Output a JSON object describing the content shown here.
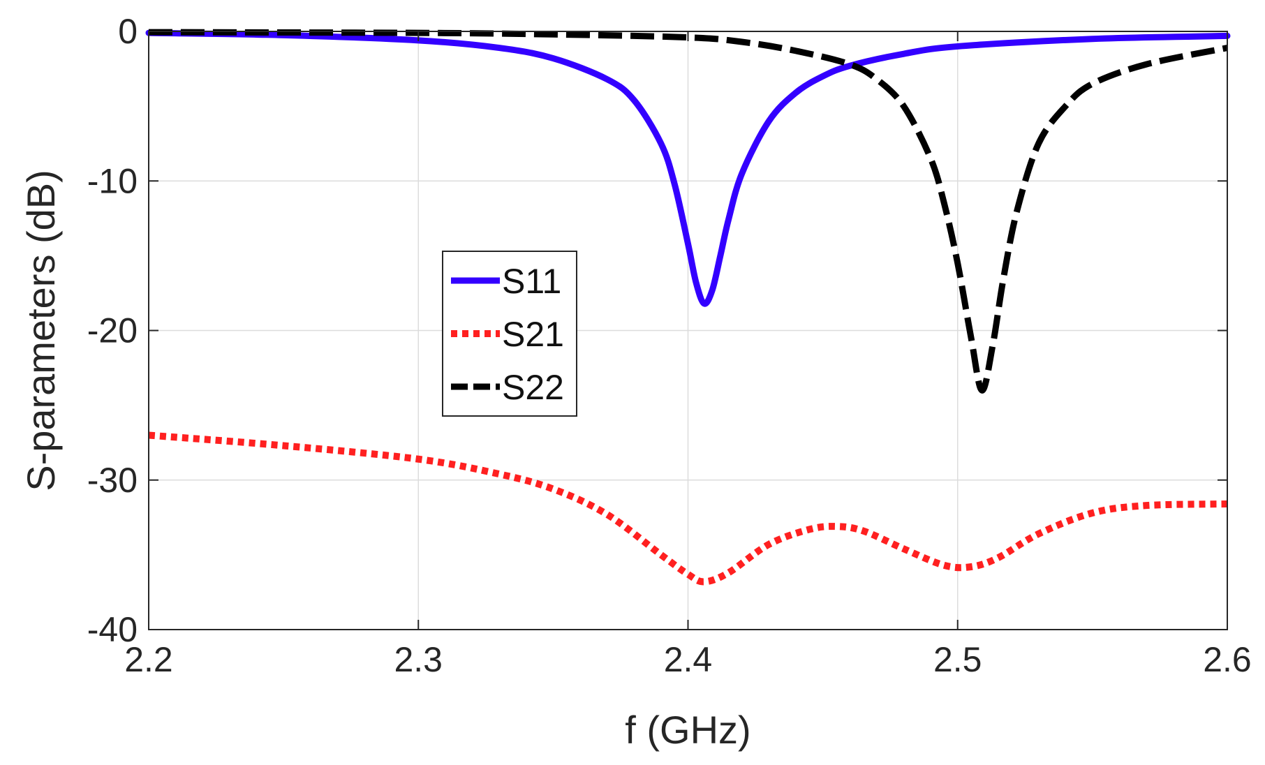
{
  "chart_data": {
    "type": "line",
    "title": "",
    "xlabel": "f (GHz)",
    "ylabel": "S-parameters (dB)",
    "xlim": [
      2.2,
      2.6
    ],
    "ylim": [
      -40,
      0
    ],
    "xticks": [
      2.2,
      2.3,
      2.4,
      2.5,
      2.6
    ],
    "xtick_labels": [
      "2.2",
      "2.3",
      "2.4",
      "2.5",
      "2.6"
    ],
    "yticks": [
      0,
      -10,
      -20,
      -30,
      -40
    ],
    "ytick_labels": [
      "0",
      "-10",
      "-20",
      "-30",
      "-40"
    ],
    "grid": true,
    "legend_position": "center-left",
    "series": [
      {
        "name": "S11",
        "color": "#3300ff",
        "style": "solid",
        "x": [
          2.2,
          2.25,
          2.3,
          2.33,
          2.35,
          2.37,
          2.38,
          2.39,
          2.395,
          2.4,
          2.403,
          2.406,
          2.409,
          2.412,
          2.415,
          2.42,
          2.43,
          2.44,
          2.45,
          2.46,
          2.48,
          2.5,
          2.55,
          2.6
        ],
        "y": [
          -0.1,
          -0.25,
          -0.6,
          -1.1,
          -1.8,
          -3.2,
          -4.6,
          -7.5,
          -10.2,
          -14.2,
          -16.8,
          -18.2,
          -17.3,
          -15.0,
          -12.6,
          -9.5,
          -6.0,
          -4.1,
          -3.0,
          -2.3,
          -1.5,
          -1.0,
          -0.5,
          -0.3
        ]
      },
      {
        "name": "S21",
        "color": "#ff2020",
        "style": "dotted",
        "x": [
          2.2,
          2.25,
          2.3,
          2.33,
          2.35,
          2.37,
          2.39,
          2.4,
          2.406,
          2.415,
          2.43,
          2.445,
          2.455,
          2.465,
          2.48,
          2.495,
          2.505,
          2.515,
          2.53,
          2.55,
          2.57,
          2.6
        ],
        "y": [
          -27.0,
          -27.7,
          -28.6,
          -29.6,
          -30.6,
          -32.3,
          -35.0,
          -36.3,
          -36.8,
          -36.2,
          -34.3,
          -33.3,
          -33.1,
          -33.4,
          -34.6,
          -35.7,
          -35.8,
          -35.2,
          -33.6,
          -32.2,
          -31.7,
          -31.6
        ]
      },
      {
        "name": "S22",
        "color": "#000000",
        "style": "dashed",
        "x": [
          2.2,
          2.3,
          2.35,
          2.4,
          2.42,
          2.44,
          2.46,
          2.47,
          2.48,
          2.49,
          2.495,
          2.5,
          2.505,
          2.509,
          2.513,
          2.517,
          2.522,
          2.53,
          2.54,
          2.55,
          2.57,
          2.6
        ],
        "y": [
          -0.05,
          -0.1,
          -0.2,
          -0.4,
          -0.7,
          -1.3,
          -2.2,
          -3.2,
          -5.0,
          -8.5,
          -11.5,
          -15.5,
          -20.5,
          -24.0,
          -21.0,
          -16.5,
          -12.0,
          -7.5,
          -5.0,
          -3.5,
          -2.2,
          -1.1
        ]
      }
    ]
  }
}
